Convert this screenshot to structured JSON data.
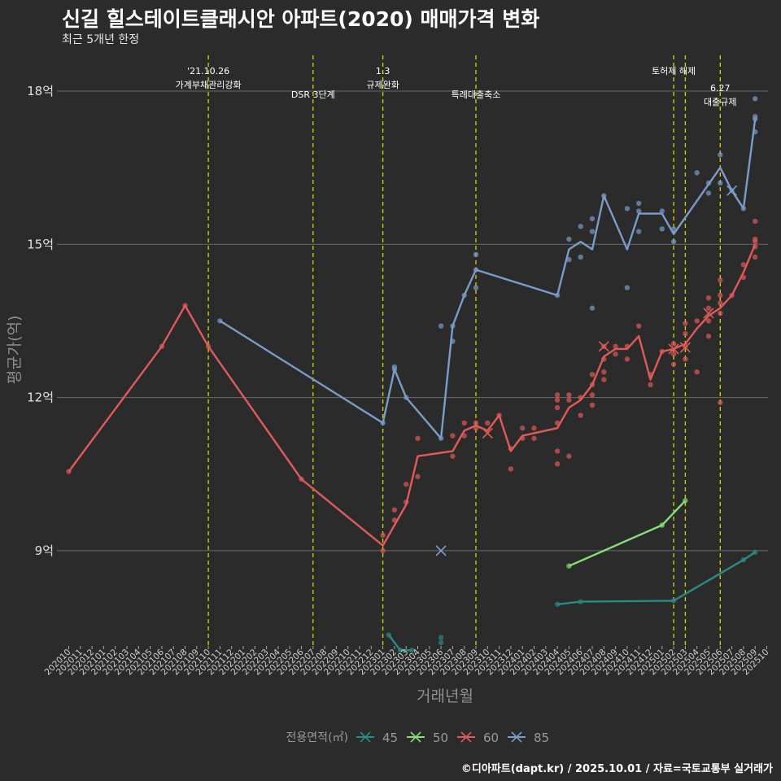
{
  "title": "신길 힐스테이트클래시안 아파트(2020) 매매가격 변화",
  "subtitle": "최근 5개년 한정",
  "caption": "©디아파트(dapt.kr) / 2025.10.01 / 자료=국토교통부 실거래가",
  "chart_data": {
    "type": "line",
    "xlabel": "거래년월",
    "ylabel": "평균가(억)",
    "y_ticks": [
      {
        "value": 9,
        "label": "9억"
      },
      {
        "value": 12,
        "label": "12억"
      },
      {
        "value": 15,
        "label": "15억"
      },
      {
        "value": 18,
        "label": "18억"
      }
    ],
    "ylim": [
      7.15,
      18.7
    ],
    "months": [
      "202010",
      "202011",
      "202012",
      "202101",
      "202102",
      "202103",
      "202104",
      "202105",
      "202106",
      "202107",
      "202108",
      "202109",
      "202110",
      "202111",
      "202112",
      "202201",
      "202202",
      "202203",
      "202204",
      "202205",
      "202206",
      "202207",
      "202208",
      "202209",
      "202210",
      "202211",
      "202212",
      "202301",
      "202302",
      "202303",
      "202304",
      "202305",
      "202306",
      "202307",
      "202308",
      "202309",
      "202310",
      "202311",
      "202312",
      "202401",
      "202402",
      "202403",
      "202404",
      "202405",
      "202406",
      "202407",
      "202408",
      "202409",
      "202410",
      "202411",
      "202412",
      "202501",
      "202502",
      "202503",
      "202504",
      "202505",
      "202506",
      "202507",
      "202508",
      "202509",
      "202510"
    ],
    "events": [
      {
        "month": "202110",
        "label": "'21.10.26\n가계부채관리강화",
        "level": 0
      },
      {
        "month": "202207",
        "label": "DSR 3단계",
        "level": 1
      },
      {
        "month": "202301",
        "label": "1.3\n규제완화",
        "level": 0
      },
      {
        "month": "202309",
        "label": "특례대출축소",
        "level": 1
      },
      {
        "month": "202502",
        "label": "토허제 해제",
        "level": 0,
        "align": "end"
      },
      {
        "month": "202503",
        "label": "",
        "level": 0
      },
      {
        "month": "202506",
        "label": "6.27\n대출규제",
        "level": 2
      }
    ],
    "legend_title": "전용면적(㎡)",
    "series": [
      {
        "name": "45",
        "color": "#2a8a86",
        "line": [
          [
            "202404.0",
            7.95
          ],
          [
            "202406.0",
            8.0
          ],
          [
            "202502.0",
            8.02
          ],
          [
            "202508.0",
            8.82
          ],
          [
            "202509.0",
            8.97
          ]
        ],
        "line2": [
          [
            "202301.5",
            7.35
          ],
          [
            "202302.5",
            7.05
          ],
          [
            "202303.5",
            7.05
          ]
        ],
        "points": [
          [
            "202301.5",
            7.35
          ],
          [
            "202302.5",
            7.05
          ],
          [
            "202303.5",
            7.05
          ],
          [
            "202306.0",
            7.3
          ],
          [
            "202306.0",
            7.2
          ],
          [
            "202404.0",
            7.95
          ],
          [
            "202406.0",
            8.0
          ],
          [
            "202502.0",
            8.02
          ],
          [
            "202508.0",
            8.82
          ],
          [
            "202509.0",
            8.97
          ]
        ],
        "crosses": []
      },
      {
        "name": "50",
        "color": "#88dd77",
        "line": [
          [
            "202405.0",
            8.7
          ],
          [
            "202501.0",
            9.5
          ],
          [
            "202503.0",
            9.98
          ]
        ],
        "points": [
          [
            "202405.0",
            8.7
          ],
          [
            "202501.0",
            9.5
          ],
          [
            "202503.0",
            9.98
          ]
        ],
        "crosses": []
      },
      {
        "name": "60",
        "color": "#e05a5a",
        "line": [
          [
            "202010.0",
            10.55
          ],
          [
            "202106.0",
            13.0
          ],
          [
            "202108.0",
            13.8
          ],
          [
            "202110.0",
            13.0
          ],
          [
            "202206.0",
            10.4
          ],
          [
            "202301.0",
            9.1
          ],
          [
            "202302.0",
            9.5
          ],
          [
            "202303.0",
            9.9
          ],
          [
            "202304.0",
            10.85
          ],
          [
            "202307.0",
            10.95
          ],
          [
            "202308.0",
            11.35
          ],
          [
            "202309.0",
            11.45
          ],
          [
            "202310.0",
            11.35
          ],
          [
            "202311.0",
            11.65
          ],
          [
            "202312.0",
            10.95
          ],
          [
            "202401.0",
            11.25
          ],
          [
            "202404.0",
            11.4
          ],
          [
            "202405.0",
            11.8
          ],
          [
            "202406.0",
            11.95
          ],
          [
            "202407.0",
            12.25
          ],
          [
            "202408.0",
            12.8
          ],
          [
            "202409.0",
            12.95
          ],
          [
            "202410.0",
            12.95
          ],
          [
            "202411.0",
            13.2
          ],
          [
            "202412.0",
            12.35
          ],
          [
            "202501.0",
            12.9
          ],
          [
            "202502.0",
            12.95
          ],
          [
            "202503.0",
            13.05
          ],
          [
            "202504.0",
            13.35
          ],
          [
            "202505.0",
            13.6
          ],
          [
            "202506.0",
            13.75
          ],
          [
            "202507.0",
            14.0
          ],
          [
            "202508.0",
            14.45
          ],
          [
            "202509.0",
            15.0
          ]
        ],
        "points": [
          [
            "202010.0",
            10.55
          ],
          [
            "202106.0",
            13.0
          ],
          [
            "202108.0",
            13.8
          ],
          [
            "202110.0",
            13.0
          ],
          [
            "202206.0",
            10.4
          ],
          [
            "202301.0",
            9.0
          ],
          [
            "202301.0",
            9.3
          ],
          [
            "202302.0",
            9.6
          ],
          [
            "202302.0",
            9.8
          ],
          [
            "202303.0",
            9.95
          ],
          [
            "202303.0",
            10.3
          ],
          [
            "202304.0",
            10.45
          ],
          [
            "202304.0",
            11.2
          ],
          [
            "202307.0",
            10.85
          ],
          [
            "202307.0",
            11.25
          ],
          [
            "202308.0",
            11.5
          ],
          [
            "202308.0",
            11.25
          ],
          [
            "202309.0",
            11.5
          ],
          [
            "202309.0",
            11.4
          ],
          [
            "202310.0",
            11.5
          ],
          [
            "202311.0",
            11.65
          ],
          [
            "202312.0",
            10.6
          ],
          [
            "202312.0",
            11.0
          ],
          [
            "202401.0",
            11.4
          ],
          [
            "202401.0",
            11.2
          ],
          [
            "202402.0",
            11.4
          ],
          [
            "202402.0",
            11.2
          ],
          [
            "202404.0",
            10.7
          ],
          [
            "202404.0",
            10.95
          ],
          [
            "202404.0",
            11.5
          ],
          [
            "202404.0",
            11.8
          ],
          [
            "202404.0",
            11.95
          ],
          [
            "202404.0",
            12.05
          ],
          [
            "202405.0",
            10.85
          ],
          [
            "202405.0",
            11.95
          ],
          [
            "202405.0",
            12.05
          ],
          [
            "202406.0",
            11.65
          ],
          [
            "202406.0",
            12.0
          ],
          [
            "202407.0",
            11.85
          ],
          [
            "202407.0",
            12.05
          ],
          [
            "202407.0",
            12.25
          ],
          [
            "202407.0",
            12.45
          ],
          [
            "202408.0",
            12.35
          ],
          [
            "202408.0",
            12.5
          ],
          [
            "202408.0",
            13.0
          ],
          [
            "202408.0",
            12.75
          ],
          [
            "202409.0",
            12.85
          ],
          [
            "202409.0",
            13.0
          ],
          [
            "202410.0",
            12.75
          ],
          [
            "202410.0",
            13.0
          ],
          [
            "202411.0",
            13.4
          ],
          [
            "202412.0",
            12.25
          ],
          [
            "202412.0",
            12.45
          ],
          [
            "202501.0",
            12.9
          ],
          [
            "202502.0",
            12.65
          ],
          [
            "202502.0",
            12.85
          ],
          [
            "202502.0",
            13.05
          ],
          [
            "202503.0",
            12.75
          ],
          [
            "202503.0",
            13.0
          ],
          [
            "202503.0",
            13.25
          ],
          [
            "202503.0",
            13.45
          ],
          [
            "202504.0",
            12.5
          ],
          [
            "202504.0",
            13.5
          ],
          [
            "202505.0",
            13.2
          ],
          [
            "202505.0",
            13.5
          ],
          [
            "202505.0",
            13.75
          ],
          [
            "202505.0",
            13.95
          ],
          [
            "202506.0",
            11.9
          ],
          [
            "202506.0",
            13.65
          ],
          [
            "202506.0",
            13.85
          ],
          [
            "202506.0",
            14.0
          ],
          [
            "202506.0",
            14.3
          ],
          [
            "202507.0",
            14.0
          ],
          [
            "202508.0",
            14.35
          ],
          [
            "202508.0",
            14.6
          ],
          [
            "202509.0",
            14.75
          ],
          [
            "202509.0",
            14.95
          ],
          [
            "202509.0",
            15.05
          ],
          [
            "202509.0",
            15.1
          ],
          [
            "202509.0",
            15.45
          ]
        ],
        "crosses": [
          [
            "202310.0",
            11.3
          ],
          [
            "202408.0",
            13.0
          ],
          [
            "202502.0",
            12.95
          ],
          [
            "202503.0",
            12.98
          ],
          [
            "202505.0",
            13.65
          ]
        ]
      },
      {
        "name": "85",
        "color": "#7a9cc9",
        "line": [
          [
            "202111.0",
            13.5
          ],
          [
            "202301.0",
            11.5
          ],
          [
            "202302.0",
            12.55
          ],
          [
            "202303.0",
            12.0
          ],
          [
            "202306.0",
            11.2
          ],
          [
            "202307.0",
            13.4
          ],
          [
            "202308.0",
            14.0
          ],
          [
            "202309.0",
            14.5
          ],
          [
            "202404.0",
            14.0
          ],
          [
            "202405.0",
            14.9
          ],
          [
            "202406.0",
            15.05
          ],
          [
            "202407.0",
            14.9
          ],
          [
            "202408.0",
            15.95
          ],
          [
            "202410.0",
            14.9
          ],
          [
            "202411.0",
            15.6
          ],
          [
            "202501.0",
            15.6
          ],
          [
            "202502.0",
            15.2
          ],
          [
            "202506.0",
            16.5
          ],
          [
            "202507.0",
            16.05
          ],
          [
            "202508.0",
            15.7
          ],
          [
            "202509.0",
            17.45
          ]
        ],
        "points": [
          [
            "202111.0",
            13.5
          ],
          [
            "202301.0",
            11.5
          ],
          [
            "202302.0",
            12.55
          ],
          [
            "202302.0",
            12.6
          ],
          [
            "202303.0",
            12.0
          ],
          [
            "202306.0",
            13.4
          ],
          [
            "202306.0",
            11.2
          ],
          [
            "202307.0",
            13.4
          ],
          [
            "202307.0",
            13.1
          ],
          [
            "202308.0",
            14.0
          ],
          [
            "202309.0",
            14.8
          ],
          [
            "202309.0",
            14.5
          ],
          [
            "202309.0",
            14.15
          ],
          [
            "202404.0",
            14.0
          ],
          [
            "202405.0",
            15.1
          ],
          [
            "202405.0",
            14.7
          ],
          [
            "202406.0",
            15.35
          ],
          [
            "202406.0",
            14.75
          ],
          [
            "202407.0",
            15.5
          ],
          [
            "202407.0",
            15.25
          ],
          [
            "202407.0",
            13.75
          ],
          [
            "202408.0",
            15.95
          ],
          [
            "202410.0",
            15.7
          ],
          [
            "202410.0",
            14.15
          ],
          [
            "202411.0",
            15.8
          ],
          [
            "202411.0",
            15.65
          ],
          [
            "202411.0",
            15.25
          ],
          [
            "202501.0",
            15.65
          ],
          [
            "202501.0",
            15.3
          ],
          [
            "202502.0",
            15.3
          ],
          [
            "202502.0",
            15.05
          ],
          [
            "202504.0",
            16.4
          ],
          [
            "202505.0",
            16.2
          ],
          [
            "202505.0",
            16.0
          ],
          [
            "202506.0",
            16.75
          ],
          [
            "202506.0",
            16.2
          ],
          [
            "202507.0",
            16.05
          ],
          [
            "202508.0",
            15.7
          ],
          [
            "202509.0",
            17.85
          ],
          [
            "202509.0",
            17.5
          ],
          [
            "202509.0",
            17.45
          ],
          [
            "202509.0",
            17.2
          ]
        ],
        "crosses": [
          [
            "202306.0",
            9.0
          ],
          [
            "202507.0",
            16.05
          ]
        ]
      }
    ]
  }
}
